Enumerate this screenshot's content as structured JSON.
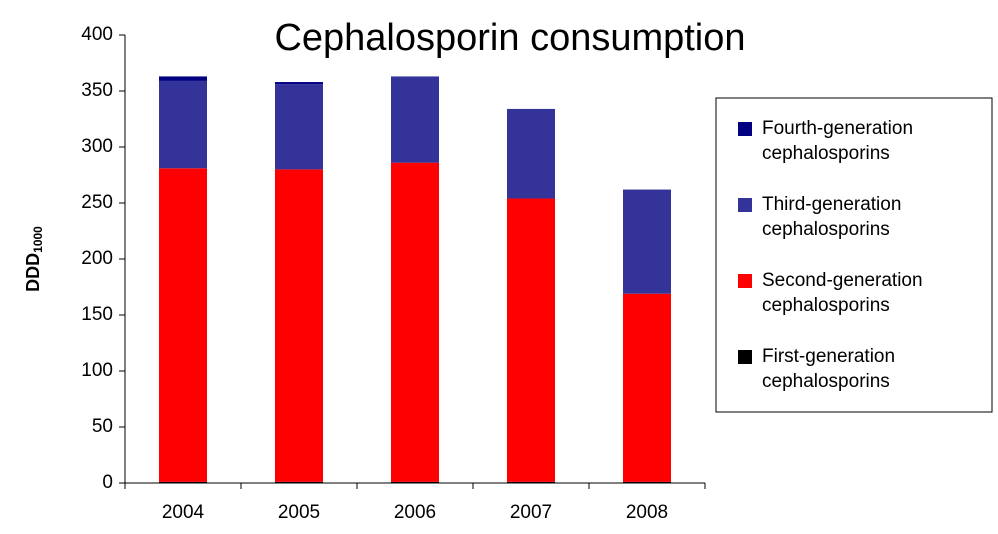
{
  "chart_data": {
    "type": "stacked_bar",
    "title": "Cephalosporin consumption",
    "y_label": {
      "main": "DDD",
      "sub": "1000"
    },
    "categories": [
      "2004",
      "2005",
      "2006",
      "2007",
      "2008"
    ],
    "series": [
      {
        "name": "First-generation cephalosporins",
        "color": "#000000",
        "values": [
          1,
          1,
          1,
          1,
          1
        ]
      },
      {
        "name": "Second-generation cephalosporins",
        "color": "#ff0000",
        "values": [
          280,
          279,
          285,
          253,
          168
        ]
      },
      {
        "name": "Third-generation cephalosporins",
        "color": "#333399",
        "values": [
          78,
          76,
          77,
          80,
          93
        ]
      },
      {
        "name": "Fourth-generation cephalosporins",
        "color": "#000080",
        "values": [
          4,
          2,
          0,
          0,
          0
        ]
      }
    ],
    "ylim": [
      0,
      400
    ],
    "yticks": [
      0,
      50,
      100,
      150,
      200,
      250,
      300,
      350,
      400
    ],
    "grid": false,
    "legend": "right"
  }
}
